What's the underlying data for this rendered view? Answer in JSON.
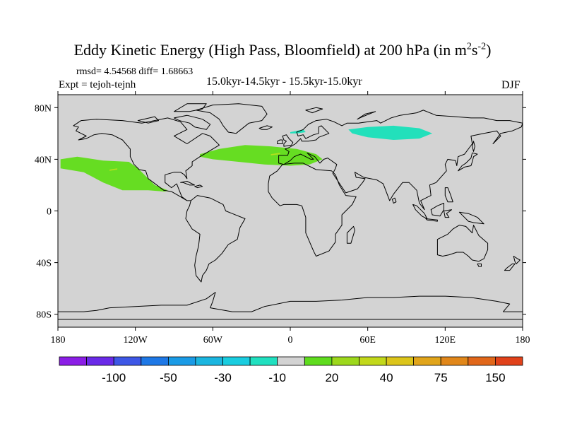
{
  "title_main": "Eddy Kinetic Energy (High Pass, Bloomfield) at 200 hPa (in m",
  "title_sup1": "2",
  "title_mid": "s",
  "title_sup2": "-2",
  "title_end": ")",
  "stats": "rmsd= 4.54568  diff= 1.68663",
  "expt": "Expt = tejoh-tejnh",
  "period": "15.0kyr-14.5kyr - 15.5kyr-15.0kyr",
  "season": "DJF",
  "map": {
    "projection": "cylindrical equidistant",
    "background_color": "#d3d3d3",
    "lon_range": [
      -180,
      180
    ],
    "lat_range": [
      -90,
      90
    ],
    "lat_ticks": [
      {
        "lat": 80,
        "label": "80N"
      },
      {
        "lat": 40,
        "label": "40N"
      },
      {
        "lat": 0,
        "label": "0"
      },
      {
        "lat": -40,
        "label": "40S"
      },
      {
        "lat": -80,
        "label": "80S"
      }
    ],
    "lon_ticks": [
      {
        "lon": -180,
        "label": "180"
      },
      {
        "lon": -120,
        "label": "120W"
      },
      {
        "lon": -60,
        "label": "60W"
      },
      {
        "lon": 0,
        "label": "0"
      },
      {
        "lon": 60,
        "label": "60E"
      },
      {
        "lon": 120,
        "label": "120E"
      },
      {
        "lon": 180,
        "label": "180"
      }
    ],
    "anomaly_regions": [
      {
        "name": "north-pacific-positive",
        "color": "#66dd22",
        "coords": [
          [
            -178,
            40
          ],
          [
            -165,
            42
          ],
          [
            -145,
            39
          ],
          [
            -125,
            38
          ],
          [
            -118,
            33
          ],
          [
            -112,
            27
          ],
          [
            -105,
            20
          ],
          [
            -95,
            16
          ],
          [
            -97,
            15
          ],
          [
            -110,
            16
          ],
          [
            -130,
            16
          ],
          [
            -145,
            22
          ],
          [
            -160,
            30
          ],
          [
            -178,
            33
          ]
        ]
      },
      {
        "name": "north-atlantic-positive",
        "color": "#66dd22",
        "coords": [
          [
            -70,
            44
          ],
          [
            -55,
            48
          ],
          [
            -35,
            51
          ],
          [
            -15,
            50
          ],
          [
            5,
            48
          ],
          [
            20,
            44
          ],
          [
            25,
            40
          ],
          [
            15,
            36
          ],
          [
            0,
            35
          ],
          [
            -20,
            36
          ],
          [
            -40,
            38
          ],
          [
            -60,
            40
          ],
          [
            -70,
            42
          ]
        ]
      },
      {
        "name": "north-atlantic-core",
        "color": "#b4e01c",
        "coords": [
          [
            -15,
            44
          ],
          [
            -8,
            45
          ],
          [
            -8,
            44
          ],
          [
            -15,
            43
          ]
        ]
      },
      {
        "name": "north-pacific-core",
        "color": "#b4e01c",
        "coords": [
          [
            -140,
            32
          ],
          [
            -134,
            33
          ],
          [
            -134,
            32
          ],
          [
            -140,
            31
          ]
        ]
      },
      {
        "name": "siberia-negative",
        "color": "#22e0bb",
        "coords": [
          [
            45,
            63
          ],
          [
            60,
            65
          ],
          [
            80,
            66
          ],
          [
            100,
            64
          ],
          [
            110,
            60
          ],
          [
            100,
            56
          ],
          [
            80,
            55
          ],
          [
            60,
            57
          ],
          [
            48,
            60
          ]
        ]
      },
      {
        "name": "scandinavia-negative",
        "color": "#22e0bb",
        "coords": [
          [
            0,
            61
          ],
          [
            10,
            63
          ],
          [
            12,
            61
          ],
          [
            5,
            60
          ],
          [
            0,
            60
          ]
        ]
      }
    ],
    "coast_color": "#000000"
  },
  "colorbar": {
    "colors": [
      "#8b1ee6",
      "#6a2ae8",
      "#3e57e6",
      "#1e78e6",
      "#1a9be6",
      "#1bb6e0",
      "#19cde0",
      "#20e0c0",
      "#d3d3d3",
      "#5fdc1e",
      "#9dd81c",
      "#c2d81a",
      "#dcc51a",
      "#e1a51b",
      "#e1871a",
      "#e1671a",
      "#e1421a"
    ],
    "labels": [
      {
        "after_box": 2,
        "text": "-100"
      },
      {
        "after_box": 4,
        "text": "-50"
      },
      {
        "after_box": 6,
        "text": "-30"
      },
      {
        "after_box": 8,
        "text": "-10"
      },
      {
        "after_box": 10,
        "text": "20"
      },
      {
        "after_box": 12,
        "text": "40"
      },
      {
        "after_box": 14,
        "text": "75"
      },
      {
        "after_box": 16,
        "text": "150"
      }
    ]
  }
}
